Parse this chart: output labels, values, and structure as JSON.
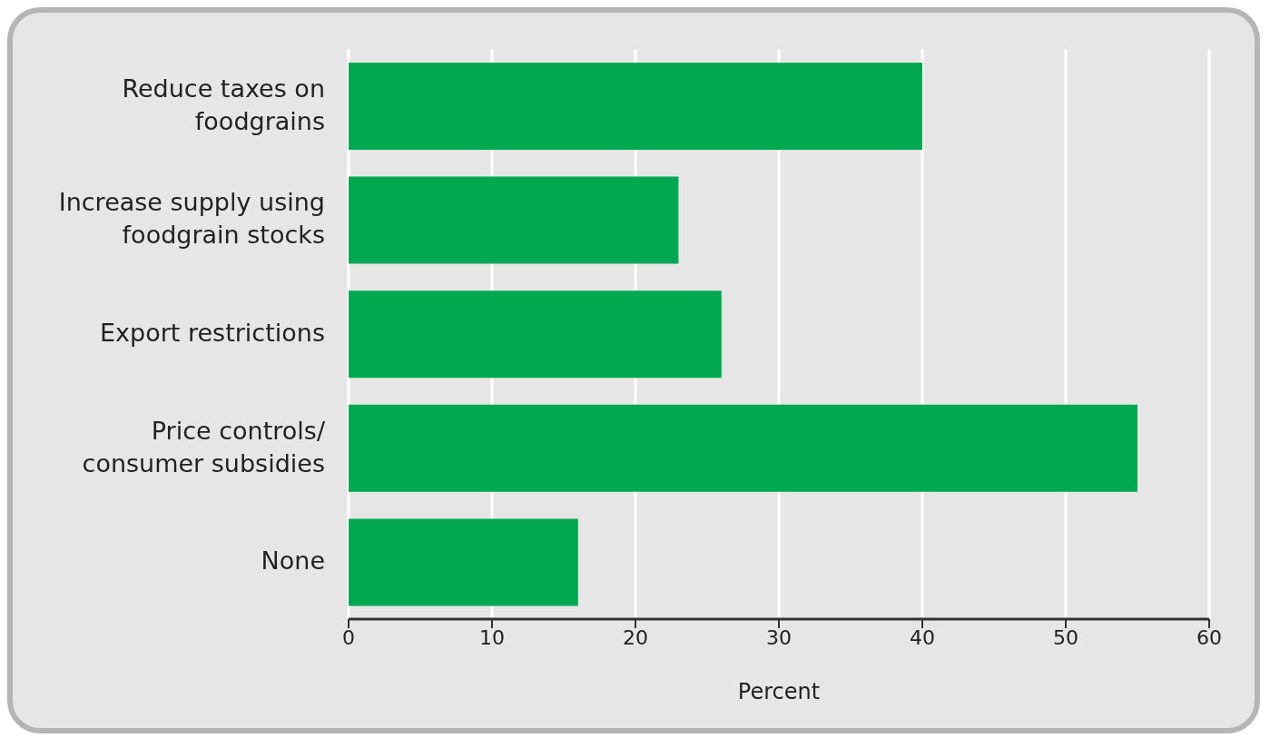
{
  "chart_data": {
    "type": "bar",
    "orientation": "horizontal",
    "xlabel": "Percent",
    "categories": [
      "Reduce taxes on foodgrains",
      "Increase supply using foodgrain stocks",
      "Export restrictions",
      "Price controls/ consumer subsidies",
      "None"
    ],
    "values": [
      40,
      23,
      26,
      55,
      16
    ],
    "color": "#00a84f",
    "xlim": [
      0,
      60
    ],
    "xticks": [
      0,
      10,
      20,
      30,
      40,
      50,
      60
    ],
    "grid": "x"
  }
}
